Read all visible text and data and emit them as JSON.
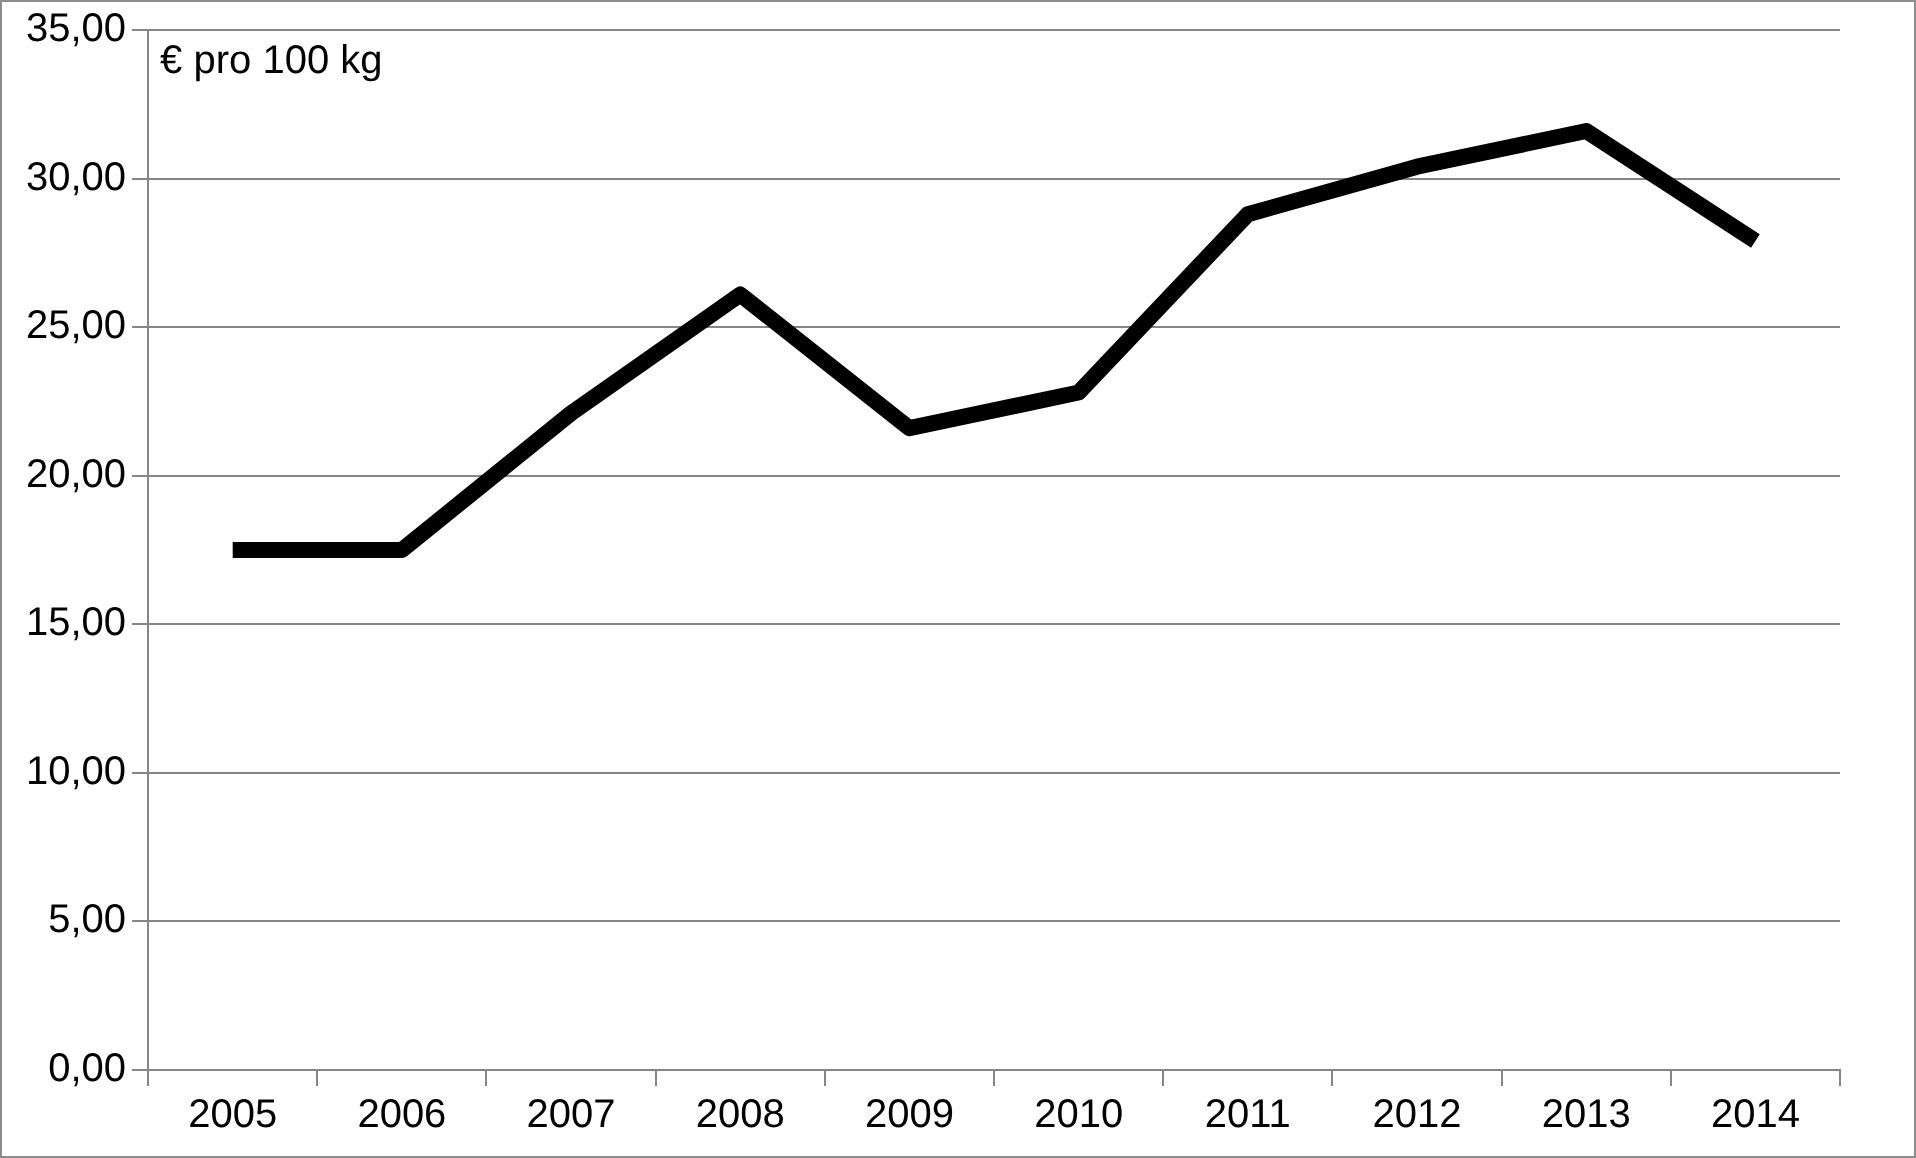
{
  "chart_data": {
    "type": "line",
    "categories": [
      "2005",
      "2006",
      "2007",
      "2008",
      "2009",
      "2010",
      "2011",
      "2012",
      "2013",
      "2014"
    ],
    "series": [
      {
        "color": "#000000",
        "values": [
          17.5,
          17.5,
          22.1,
          26.1,
          21.6,
          22.8,
          28.8,
          30.4,
          31.6,
          27.9
        ]
      }
    ],
    "ylim": [
      0,
      35
    ],
    "yticks": [
      {
        "value": 0,
        "label": "0,00"
      },
      {
        "value": 5,
        "label": "5,00"
      },
      {
        "value": 10,
        "label": "10,00"
      },
      {
        "value": 15,
        "label": "15,00"
      },
      {
        "value": 20,
        "label": "20,00"
      },
      {
        "value": 25,
        "label": "25,00"
      },
      {
        "value": 30,
        "label": "30,00"
      },
      {
        "value": 35,
        "label": "35,00"
      }
    ],
    "grid": "y",
    "legend": false,
    "marker": "none",
    "line_style": "solid",
    "annotations": [
      "€ pro 100 kg"
    ]
  }
}
